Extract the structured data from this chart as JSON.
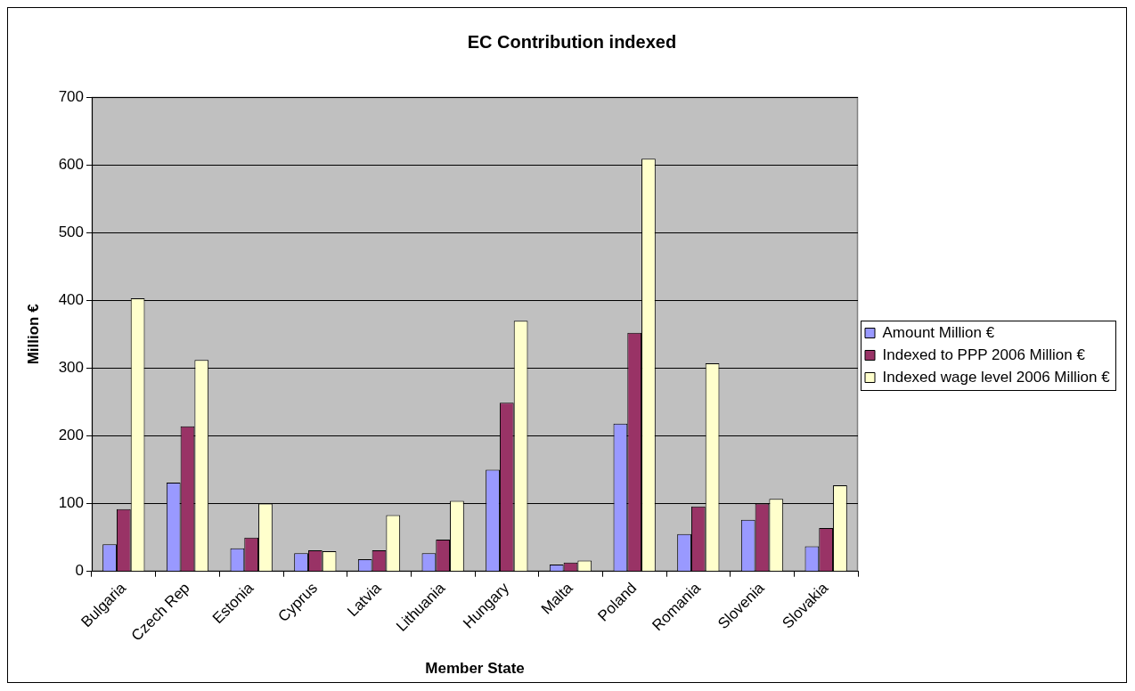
{
  "chart_data": {
    "type": "bar",
    "title": "EC Contribution indexed",
    "xlabel": "Member State",
    "ylabel": "Million €",
    "categories": [
      "Bulgaria",
      "Czech Rep",
      "Estonia",
      "Cyprus",
      "Latvia",
      "Lithuania",
      "Hungary",
      "Malta",
      "Poland",
      "Romania",
      "Slovenia",
      "Slovakia"
    ],
    "series": [
      {
        "name": "Amount Million €",
        "color": "#9999ff",
        "values": [
          40,
          131,
          34,
          27,
          18,
          27,
          150,
          10,
          218,
          55,
          76,
          37
        ]
      },
      {
        "name": "Indexed to PPP 2006 Million €",
        "color": "#993366",
        "values": [
          92,
          214,
          50,
          31,
          31,
          47,
          249,
          13,
          352,
          96,
          100,
          64
        ]
      },
      {
        "name": "Indexed wage level 2006 Million €",
        "color": "#ffffcc",
        "values": [
          403,
          312,
          100,
          30,
          83,
          104,
          370,
          16,
          609,
          307,
          107,
          127
        ]
      }
    ],
    "ylim": [
      0,
      700
    ],
    "yticks": [
      0,
      100,
      200,
      300,
      400,
      500,
      600,
      700
    ],
    "grid": "y",
    "legend": "right"
  }
}
